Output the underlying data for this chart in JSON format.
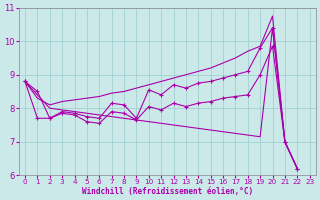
{
  "xlabel": "Windchill (Refroidissement éolien,°C)",
  "xlim": [
    -0.5,
    23.5
  ],
  "ylim": [
    6,
    11
  ],
  "yticks": [
    6,
    7,
    8,
    9,
    10,
    11
  ],
  "xticks": [
    0,
    1,
    2,
    3,
    4,
    5,
    6,
    7,
    8,
    9,
    10,
    11,
    12,
    13,
    14,
    15,
    16,
    17,
    18,
    19,
    20,
    21,
    22,
    23
  ],
  "bg_color": "#cce9e9",
  "line_color": "#aa00aa",
  "grid_color": "#99cccc",
  "s_upper": [
    8.8,
    8.3,
    8.1,
    8.2,
    8.25,
    8.3,
    8.35,
    8.45,
    8.5,
    8.6,
    8.7,
    8.8,
    8.9,
    9.0,
    9.1,
    9.2,
    9.35,
    9.5,
    9.7,
    9.85,
    10.75,
    7.0,
    6.2
  ],
  "s_jagged1": [
    8.8,
    8.5,
    7.7,
    7.9,
    7.85,
    7.75,
    7.7,
    8.15,
    8.1,
    7.7,
    8.55,
    8.4,
    8.7,
    8.6,
    8.75,
    8.8,
    8.9,
    9.0,
    9.1,
    9.8,
    10.4,
    7.0,
    6.2
  ],
  "s_jagged2": [
    8.8,
    7.7,
    7.7,
    7.85,
    7.8,
    7.6,
    7.55,
    7.9,
    7.85,
    7.65,
    8.05,
    7.95,
    8.15,
    8.05,
    8.15,
    8.2,
    8.3,
    8.35,
    8.4,
    9.0,
    9.85,
    7.0,
    6.2
  ],
  "s_lower": [
    8.8,
    8.4,
    8.0,
    7.95,
    7.9,
    7.85,
    7.8,
    7.75,
    7.7,
    7.65,
    7.6,
    7.55,
    7.5,
    7.45,
    7.4,
    7.35,
    7.3,
    7.25,
    7.2,
    7.15,
    10.4,
    7.0,
    6.2
  ]
}
